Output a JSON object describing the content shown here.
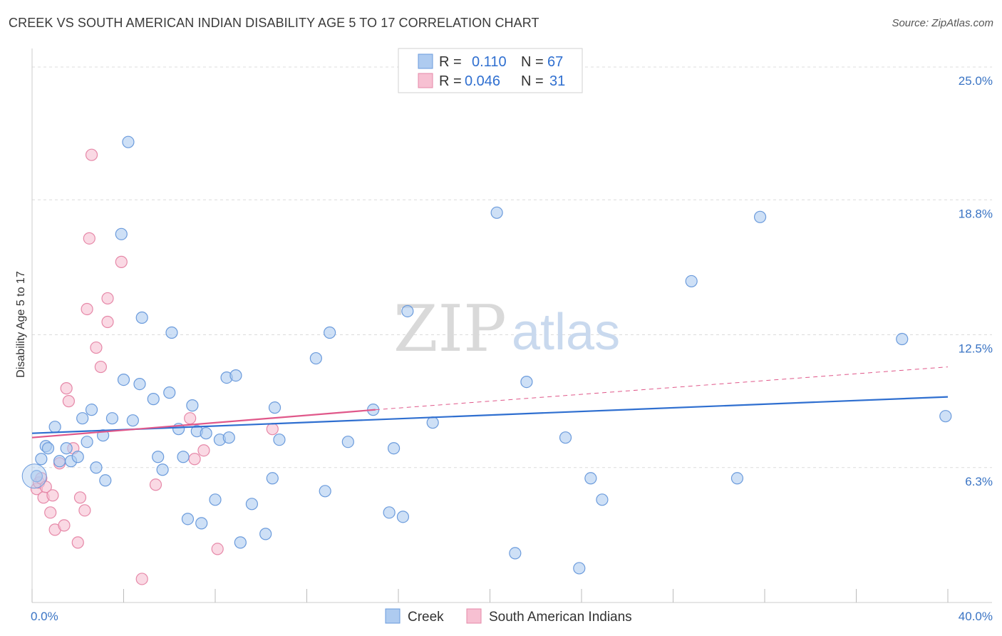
{
  "header": {
    "title": "CREEK VS SOUTH AMERICAN INDIAN DISABILITY AGE 5 TO 17 CORRELATION CHART",
    "source": "Source: ZipAtlas.com"
  },
  "watermark": {
    "zip": "ZIP",
    "atlas": "atlas"
  },
  "colors": {
    "creek_fill": "#aecbf0",
    "creek_stroke": "#6b9bdc",
    "creek_line": "#2f6fd0",
    "sa_fill": "#f7c0d2",
    "sa_stroke": "#e688a8",
    "sa_line": "#e0588a",
    "tick_text": "#3a74c4",
    "grid": "#dcdcdc"
  },
  "legend": {
    "rows": [
      {
        "r_label": "R =",
        "r_value": "0.110",
        "n_label": "N =",
        "n_value": "67"
      },
      {
        "r_label": "R =",
        "r_value": "0.046",
        "n_label": "N =",
        "n_value": "31"
      }
    ]
  },
  "chart_data": {
    "type": "scatter",
    "title": "CREEK VS SOUTH AMERICAN INDIAN DISABILITY AGE 5 TO 17 CORRELATION CHART",
    "xlabel": "",
    "ylabel": "Disability Age 5 to 17",
    "xlim": [
      0,
      40
    ],
    "ylim": [
      0,
      25.8
    ],
    "x_tick_labels": [
      {
        "value": 0,
        "label": "0.0%"
      },
      {
        "value": 40,
        "label": "40.0%"
      }
    ],
    "y_tick_labels": [
      {
        "value": 6.3,
        "label": "6.3%"
      },
      {
        "value": 12.5,
        "label": "12.5%"
      },
      {
        "value": 18.8,
        "label": "18.8%"
      },
      {
        "value": 25.0,
        "label": "25.0%"
      }
    ],
    "series": [
      {
        "name": "Creek",
        "r": 0.11,
        "n": 67,
        "trend": {
          "x0": 0,
          "y0": 7.9,
          "x1": 40,
          "y1": 9.6,
          "dashed_to": null
        },
        "points": [
          [
            0.2,
            5.9
          ],
          [
            0.4,
            6.7
          ],
          [
            0.6,
            7.3
          ],
          [
            0.7,
            7.2
          ],
          [
            1.0,
            8.2
          ],
          [
            1.2,
            6.6
          ],
          [
            1.5,
            7.2
          ],
          [
            1.7,
            6.6
          ],
          [
            2.0,
            6.8
          ],
          [
            2.2,
            8.6
          ],
          [
            2.4,
            7.5
          ],
          [
            2.6,
            9.0
          ],
          [
            2.8,
            6.3
          ],
          [
            3.1,
            7.8
          ],
          [
            3.2,
            5.7
          ],
          [
            3.5,
            8.6
          ],
          [
            3.9,
            17.2
          ],
          [
            4.0,
            10.4
          ],
          [
            4.2,
            21.5
          ],
          [
            4.4,
            8.5
          ],
          [
            4.7,
            10.2
          ],
          [
            4.8,
            13.3
          ],
          [
            5.3,
            9.5
          ],
          [
            5.5,
            6.8
          ],
          [
            5.7,
            6.2
          ],
          [
            6.0,
            9.8
          ],
          [
            6.1,
            12.6
          ],
          [
            6.4,
            8.1
          ],
          [
            6.6,
            6.8
          ],
          [
            6.8,
            3.9
          ],
          [
            7.0,
            9.2
          ],
          [
            7.2,
            8.0
          ],
          [
            7.4,
            3.7
          ],
          [
            7.6,
            7.9
          ],
          [
            8.0,
            4.8
          ],
          [
            8.2,
            7.6
          ],
          [
            8.5,
            10.5
          ],
          [
            8.6,
            7.7
          ],
          [
            8.9,
            10.6
          ],
          [
            9.1,
            2.8
          ],
          [
            9.6,
            4.6
          ],
          [
            10.2,
            3.2
          ],
          [
            10.5,
            5.8
          ],
          [
            10.6,
            9.1
          ],
          [
            10.8,
            7.6
          ],
          [
            12.4,
            11.4
          ],
          [
            12.8,
            5.2
          ],
          [
            13.0,
            12.6
          ],
          [
            13.8,
            7.5
          ],
          [
            14.9,
            9.0
          ],
          [
            15.6,
            4.2
          ],
          [
            15.8,
            7.2
          ],
          [
            16.2,
            4.0
          ],
          [
            16.4,
            13.6
          ],
          [
            17.5,
            8.4
          ],
          [
            20.3,
            18.2
          ],
          [
            21.1,
            2.3
          ],
          [
            21.6,
            10.3
          ],
          [
            23.3,
            7.7
          ],
          [
            23.9,
            1.6
          ],
          [
            24.4,
            5.8
          ],
          [
            24.9,
            4.8
          ],
          [
            28.8,
            15.0
          ],
          [
            30.8,
            5.8
          ],
          [
            31.8,
            18.0
          ],
          [
            38.0,
            12.3
          ],
          [
            39.9,
            8.7
          ]
        ]
      },
      {
        "name": "South American Indians",
        "r": 0.046,
        "n": 31,
        "trend": {
          "x0": 0,
          "y0": 7.7,
          "x1": 15.0,
          "y1": 9.0,
          "dashed_to": [
            40,
            11.0
          ]
        },
        "points": [
          [
            0.2,
            5.3
          ],
          [
            0.3,
            5.6
          ],
          [
            0.4,
            5.8
          ],
          [
            0.5,
            4.9
          ],
          [
            0.6,
            5.4
          ],
          [
            0.8,
            4.2
          ],
          [
            0.9,
            5.0
          ],
          [
            1.0,
            3.4
          ],
          [
            1.2,
            6.5
          ],
          [
            1.4,
            3.6
          ],
          [
            1.5,
            10.0
          ],
          [
            1.6,
            9.4
          ],
          [
            1.8,
            7.2
          ],
          [
            2.0,
            2.8
          ],
          [
            2.1,
            4.9
          ],
          [
            2.3,
            4.3
          ],
          [
            2.4,
            13.7
          ],
          [
            2.5,
            17.0
          ],
          [
            2.6,
            20.9
          ],
          [
            2.8,
            11.9
          ],
          [
            3.0,
            11.0
          ],
          [
            3.3,
            14.2
          ],
          [
            3.3,
            13.1
          ],
          [
            3.9,
            15.9
          ],
          [
            4.8,
            1.1
          ],
          [
            5.4,
            5.5
          ],
          [
            6.9,
            8.6
          ],
          [
            7.1,
            6.7
          ],
          [
            7.5,
            7.1
          ],
          [
            8.1,
            2.5
          ],
          [
            10.5,
            8.1
          ]
        ]
      }
    ]
  },
  "bottom_legend": {
    "items": [
      {
        "label": "Creek"
      },
      {
        "label": "South American Indians"
      }
    ]
  }
}
